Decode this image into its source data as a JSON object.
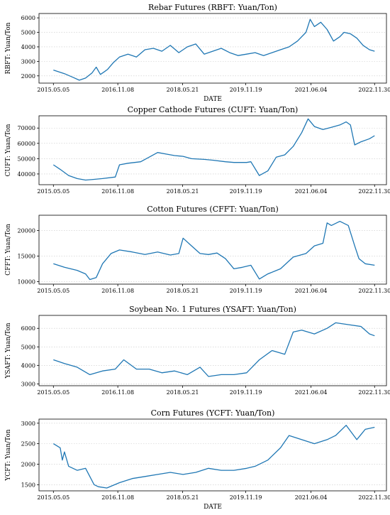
{
  "chart_data": [
    {
      "type": "line",
      "title": "Rebar Futures (RBFT: Yuan/Ton)",
      "xlabel": "DATE",
      "ylabel": "RBFT: Yuan/Ton",
      "xticks": [
        "2015.05.05",
        "2016.11.08",
        "2018.05.21",
        "2019.11.19",
        "2021.06.04",
        "2022.11.30"
      ],
      "yticks": [
        2000,
        3000,
        4000,
        5000,
        6000
      ],
      "ylim": [
        1500,
        6300
      ],
      "grid": "horizontal dotted",
      "color": "#1f77b4",
      "x": [
        2015.34,
        2015.6,
        2015.8,
        2015.95,
        2016.1,
        2016.25,
        2016.35,
        2016.45,
        2016.55,
        2016.62,
        2016.75,
        2016.9,
        2017.1,
        2017.3,
        2017.5,
        2017.7,
        2017.9,
        2018.1,
        2018.3,
        2018.5,
        2018.7,
        2018.9,
        2019.1,
        2019.3,
        2019.5,
        2019.7,
        2019.9,
        2020.1,
        2020.3,
        2020.5,
        2020.7,
        2020.9,
        2021.1,
        2021.3,
        2021.4,
        2021.5,
        2021.65,
        2021.8,
        2021.95,
        2022.1,
        2022.2,
        2022.35,
        2022.5,
        2022.65,
        2022.8,
        2022.92
      ],
      "y": [
        2400,
        2150,
        1900,
        1700,
        1850,
        2200,
        2600,
        2100,
        2300,
        2450,
        2900,
        3300,
        3500,
        3300,
        3800,
        3900,
        3700,
        4100,
        3600,
        4000,
        4200,
        3500,
        3700,
        3900,
        3600,
        3400,
        3500,
        3600,
        3400,
        3600,
        3800,
        4000,
        4400,
        5000,
        5900,
        5400,
        5700,
        5200,
        4400,
        4700,
        5000,
        4900,
        4600,
        4100,
        3800,
        3700
      ]
    },
    {
      "type": "line",
      "title": "Copper Cathode Futures (CUFT: Yuan/Ton)",
      "xlabel": "",
      "ylabel": "CUFT: Yuan/Ton",
      "xticks": [
        "2015.05.05",
        "2016.11.08",
        "2018.05.21",
        "2019.11.19",
        "2021.06.04",
        "2022.11.30"
      ],
      "yticks": [
        40000,
        50000,
        60000,
        70000
      ],
      "ylim": [
        33000,
        78000
      ],
      "grid": "horizontal dotted",
      "color": "#1f77b4",
      "x": [
        2015.34,
        2015.5,
        2015.7,
        2015.9,
        2016.1,
        2016.3,
        2016.5,
        2016.8,
        2016.9,
        2017.1,
        2017.4,
        2017.6,
        2017.8,
        2018.0,
        2018.2,
        2018.4,
        2018.6,
        2018.9,
        2019.1,
        2019.4,
        2019.6,
        2019.9,
        2020.0,
        2020.2,
        2020.4,
        2020.6,
        2020.8,
        2021.0,
        2021.2,
        2021.35,
        2021.5,
        2021.7,
        2021.9,
        2022.1,
        2022.25,
        2022.35,
        2022.45,
        2022.6,
        2022.8,
        2022.92
      ],
      "y": [
        46000,
        43000,
        39000,
        37000,
        36000,
        36500,
        37000,
        38000,
        46000,
        47000,
        48000,
        51000,
        54000,
        53000,
        52000,
        51500,
        50000,
        49500,
        49000,
        48000,
        47500,
        47500,
        48000,
        39000,
        42000,
        51000,
        52500,
        58000,
        67000,
        76000,
        71000,
        69000,
        70500,
        72000,
        74000,
        72000,
        59000,
        61000,
        63000,
        65000
      ]
    },
    {
      "type": "line",
      "title": "Cotton Futures (CFFT: Yuan/Ton)",
      "xlabel": "",
      "ylabel": "CFFT: Yuan/Ton",
      "xticks": [
        "2015.05.05",
        "2016.11.08",
        "2018.05.21",
        "2019.11.19",
        "2021.06.04",
        "2022.11.30"
      ],
      "yticks": [
        10000,
        15000,
        20000
      ],
      "ylim": [
        9500,
        23000
      ],
      "grid": "horizontal dotted",
      "color": "#1f77b4",
      "x": [
        2015.34,
        2015.6,
        2015.9,
        2016.1,
        2016.2,
        2016.35,
        2016.5,
        2016.7,
        2016.9,
        2017.2,
        2017.5,
        2017.8,
        2018.1,
        2018.3,
        2018.4,
        2018.6,
        2018.8,
        2019.0,
        2019.2,
        2019.4,
        2019.6,
        2019.8,
        2020.0,
        2020.2,
        2020.4,
        2020.7,
        2021.0,
        2021.3,
        2021.5,
        2021.7,
        2021.8,
        2021.9,
        2022.1,
        2022.3,
        2022.45,
        2022.55,
        2022.7,
        2022.92
      ],
      "y": [
        13500,
        12800,
        12200,
        11500,
        10400,
        10800,
        13500,
        15500,
        16200,
        15800,
        15300,
        15800,
        15200,
        15500,
        18500,
        17000,
        15500,
        15300,
        15600,
        14500,
        12500,
        12800,
        13200,
        10500,
        11500,
        12500,
        14800,
        15500,
        17000,
        17500,
        21500,
        21000,
        21800,
        21000,
        17000,
        14500,
        13500,
        13200
      ]
    },
    {
      "type": "line",
      "title": "Soybean No. 1 Futures (YSAFT: Yuan/Ton)",
      "xlabel": "",
      "ylabel": "YSAFT: Yuan/Ton",
      "xticks": [
        "2015.05.05",
        "2016.11.08",
        "2018.05.21",
        "2019.11.19",
        "2021.06.04",
        "2022.11.30"
      ],
      "yticks": [
        3000,
        4000,
        5000,
        6000
      ],
      "ylim": [
        2900,
        6700
      ],
      "grid": "horizontal dotted",
      "color": "#1f77b4",
      "x": [
        2015.34,
        2015.6,
        2015.9,
        2016.2,
        2016.5,
        2016.8,
        2017.0,
        2017.3,
        2017.6,
        2017.9,
        2018.2,
        2018.5,
        2018.8,
        2019.0,
        2019.3,
        2019.6,
        2019.9,
        2020.2,
        2020.5,
        2020.8,
        2021.0,
        2021.2,
        2021.5,
        2021.8,
        2022.0,
        2022.3,
        2022.6,
        2022.8,
        2022.92
      ],
      "y": [
        4300,
        4100,
        3900,
        3500,
        3700,
        3800,
        4300,
        3800,
        3800,
        3600,
        3700,
        3500,
        3900,
        3400,
        3500,
        3500,
        3600,
        4300,
        4800,
        4600,
        5800,
        5900,
        5700,
        6000,
        6300,
        6200,
        6100,
        5700,
        5600
      ]
    },
    {
      "type": "line",
      "title": "Corn Futures (YCFT: Yuan/Ton)",
      "xlabel": "DATE",
      "ylabel": "YCFT: Yuan/Ton",
      "xticks": [
        "2015.05.05",
        "2016.11.08",
        "2018.05.21",
        "2019.11.19",
        "2021.06.04",
        "2022.11.30"
      ],
      "yticks": [
        1500,
        2000,
        2500,
        3000
      ],
      "ylim": [
        1350,
        3100
      ],
      "grid": "horizontal dotted",
      "color": "#1f77b4",
      "x": [
        2015.34,
        2015.5,
        2015.55,
        2015.6,
        2015.7,
        2015.9,
        2016.1,
        2016.3,
        2016.4,
        2016.6,
        2016.9,
        2017.2,
        2017.5,
        2017.8,
        2018.1,
        2018.4,
        2018.7,
        2019.0,
        2019.3,
        2019.6,
        2019.9,
        2020.1,
        2020.4,
        2020.7,
        2020.9,
        2021.2,
        2021.5,
        2021.8,
        2022.0,
        2022.25,
        2022.5,
        2022.7,
        2022.92
      ],
      "y": [
        2500,
        2400,
        2100,
        2300,
        1950,
        1850,
        1900,
        1500,
        1450,
        1420,
        1550,
        1650,
        1700,
        1750,
        1800,
        1750,
        1800,
        1900,
        1850,
        1850,
        1900,
        1950,
        2100,
        2400,
        2700,
        2600,
        2500,
        2600,
        2700,
        2950,
        2600,
        2850,
        2900
      ]
    }
  ]
}
